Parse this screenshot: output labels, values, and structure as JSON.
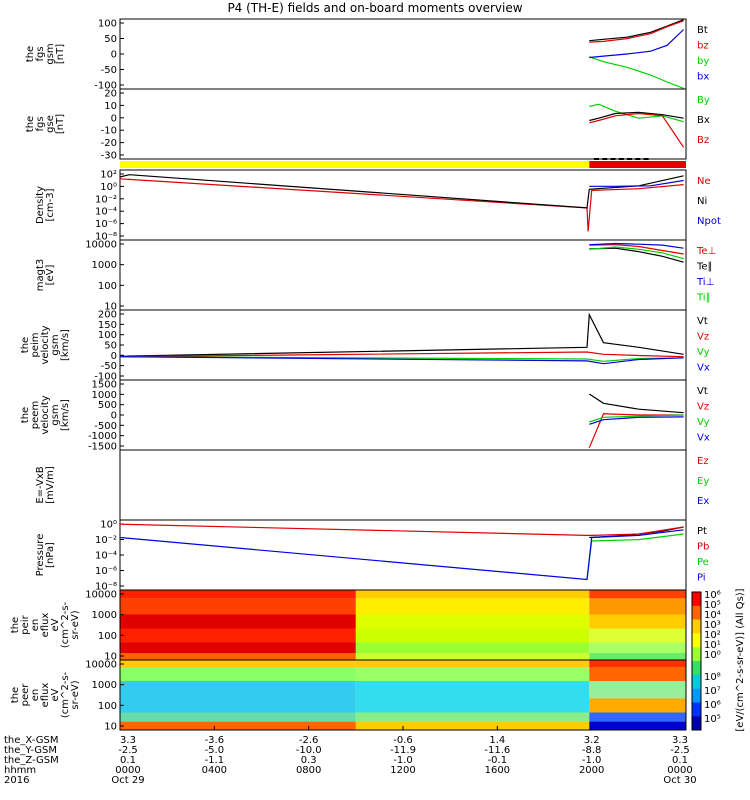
{
  "title": "P4 (TH-E) fields and on-board moments overview",
  "colors": {
    "black": "#000000",
    "red": "#e00000",
    "green": "#00d000",
    "blue": "#0000e0",
    "yellow": "#ffff00",
    "orange": "#ff9900"
  },
  "chart_data": [
    {
      "type": "line",
      "id": "fgs_gsm",
      "ylabel": [
        "the",
        "fgs",
        "gsm",
        "[nT]"
      ],
      "ylim": [
        -100,
        100
      ],
      "yticks": [
        "100",
        "50",
        "0",
        "-50",
        "-100"
      ],
      "series": [
        {
          "name": "Bt",
          "color": "black",
          "x": [
            19.9,
            20.5,
            21.5,
            22.5,
            23.2,
            23.9
          ],
          "y": [
            38,
            42,
            48,
            62,
            80,
            98
          ]
        },
        {
          "name": "bz",
          "color": "red",
          "x": [
            19.9,
            20.5,
            21.5,
            22.5,
            23.2,
            23.9
          ],
          "y": [
            34,
            36,
            44,
            58,
            78,
            95
          ]
        },
        {
          "name": "by",
          "color": "green",
          "x": [
            19.9,
            20.5,
            21.5,
            22.5,
            23.2,
            23.9
          ],
          "y": [
            -8,
            -22,
            -38,
            -60,
            -80,
            -98
          ]
        },
        {
          "name": "bx",
          "color": "blue",
          "x": [
            19.9,
            20.5,
            21.5,
            22.5,
            23.2,
            23.9
          ],
          "y": [
            -10,
            -6,
            0,
            8,
            25,
            70
          ]
        }
      ]
    },
    {
      "type": "line",
      "id": "fgs_gse",
      "ylabel": [
        "the",
        "fgs",
        "gse",
        "[nT]"
      ],
      "ylim": [
        -35,
        25
      ],
      "yticks": [
        "20",
        "10",
        "0",
        "-10",
        "-20",
        "-30"
      ],
      "series": [
        {
          "name": "By",
          "color": "green",
          "x": [
            19.9,
            20.3,
            21,
            22,
            23,
            23.9
          ],
          "y": [
            10,
            12,
            6,
            0,
            2,
            -3
          ]
        },
        {
          "name": "Bx",
          "color": "black",
          "x": [
            19.9,
            20.3,
            21,
            22,
            23,
            23.9
          ],
          "y": [
            -2,
            0,
            4,
            5,
            3,
            0
          ]
        },
        {
          "name": "Bz",
          "color": "red",
          "x": [
            19.9,
            20.3,
            21,
            22,
            23,
            23.9
          ],
          "y": [
            -4,
            -2,
            2,
            4,
            2,
            -25
          ]
        }
      ]
    },
    {
      "type": "line",
      "id": "density",
      "log": true,
      "ylabel": [
        "Density",
        "[cm-3]"
      ],
      "ylim": [
        -9,
        3
      ],
      "yticks": [
        "10²",
        "10⁰",
        "10⁻²",
        "10⁻⁴",
        "10⁻⁶",
        "10⁻⁸"
      ],
      "series": [
        {
          "name": "Ne",
          "color": "red",
          "x": [
            0,
            19.8,
            19.85,
            20,
            22,
            23.9
          ],
          "y": [
            1.5,
            -3.5,
            -7.5,
            -0.5,
            -0.2,
            0.5
          ]
        },
        {
          "name": "Ni",
          "color": "black",
          "x": [
            0,
            0.4,
            19.8,
            19.9,
            22,
            23.9
          ],
          "y": [
            1.8,
            2.2,
            -3.5,
            -0.3,
            0.3,
            2
          ]
        },
        {
          "name": "Npot",
          "color": "blue",
          "x": [
            19.9,
            21,
            22.5,
            23.9
          ],
          "y": [
            0.2,
            0.2,
            0.3,
            1.2
          ]
        }
      ]
    },
    {
      "type": "line",
      "id": "temperature",
      "log": true,
      "ylabel": [
        "magt3",
        "[eV]"
      ],
      "ylim": [
        1,
        4
      ],
      "yticks": [
        "10000",
        "1000",
        "100",
        "10"
      ],
      "series": [
        {
          "name": "Te⊥",
          "color": "red",
          "x": [
            19.9,
            21,
            22,
            23,
            23.9
          ],
          "y": [
            3.78,
            3.8,
            3.72,
            3.55,
            3.4
          ]
        },
        {
          "name": "Te∥",
          "color": "black",
          "x": [
            19.9,
            21,
            22,
            23,
            23.9
          ],
          "y": [
            3.62,
            3.65,
            3.5,
            3.3,
            3.05
          ]
        },
        {
          "name": "Ti⊥",
          "color": "blue",
          "x": [
            19.9,
            21,
            22,
            23,
            23.9
          ],
          "y": [
            3.8,
            3.85,
            3.82,
            3.78,
            3.65
          ]
        },
        {
          "name": "Ti∥",
          "color": "green",
          "x": [
            19.9,
            21,
            22,
            23,
            23.9
          ],
          "y": [
            3.6,
            3.7,
            3.6,
            3.45,
            3.2
          ]
        }
      ]
    },
    {
      "type": "line",
      "id": "peim_velocity",
      "ylabel": [
        "the",
        "peim",
        "velocity",
        "gsm",
        "[km/s]"
      ],
      "ylim": [
        -100,
        200
      ],
      "yticks": [
        "200",
        "150",
        "100",
        "50",
        "0",
        "-50",
        "-100"
      ],
      "series": [
        {
          "name": "Vt",
          "color": "black",
          "x": [
            0,
            19.8,
            19.9,
            20.5,
            22,
            23.9
          ],
          "y": [
            2,
            40,
            180,
            60,
            40,
            10
          ]
        },
        {
          "name": "Vz",
          "color": "red",
          "x": [
            0,
            19.8,
            20.5,
            22,
            23.9
          ],
          "y": [
            0,
            20,
            10,
            5,
            0
          ]
        },
        {
          "name": "Vy",
          "color": "green",
          "x": [
            0,
            19.8,
            20.5,
            22,
            23.9
          ],
          "y": [
            0,
            -10,
            -20,
            -8,
            -5
          ]
        },
        {
          "name": "Vx",
          "color": "blue",
          "x": [
            0,
            19.8,
            20.5,
            22,
            23.9
          ],
          "y": [
            0,
            -18,
            -30,
            -12,
            -5
          ]
        }
      ]
    },
    {
      "type": "line",
      "id": "peem_velocity",
      "ylabel": [
        "the",
        "peem",
        "velocity",
        "gsm",
        "[km/s]"
      ],
      "ylim": [
        -1500,
        1500
      ],
      "yticks": [
        "1500",
        "1000",
        "500",
        "0",
        "-500",
        "-1000",
        "-1500"
      ],
      "series": [
        {
          "name": "Vt",
          "color": "black",
          "x": [
            19.9,
            20.5,
            22,
            23.9
          ],
          "y": [
            900,
            500,
            250,
            100
          ]
        },
        {
          "name": "Vz",
          "color": "red",
          "x": [
            19.9,
            20.5,
            22,
            23.9
          ],
          "y": [
            -1400,
            50,
            0,
            0
          ]
        },
        {
          "name": "Vy",
          "color": "green",
          "x": [
            19.9,
            20.5,
            22,
            23.9
          ],
          "y": [
            -300,
            -100,
            -50,
            0
          ]
        },
        {
          "name": "Vx",
          "color": "blue",
          "x": [
            19.9,
            20.5,
            22,
            23.9
          ],
          "y": [
            -400,
            -200,
            -100,
            -80
          ]
        }
      ]
    },
    {
      "type": "line",
      "id": "efield",
      "ylabel": [
        "E=-VxB",
        "[mV/m]"
      ],
      "ylim": [
        0,
        1
      ],
      "yticks": [],
      "series": [
        {
          "name": "Ez",
          "color": "red",
          "x": [],
          "y": []
        },
        {
          "name": "Ey",
          "color": "green",
          "x": [],
          "y": []
        },
        {
          "name": "Ex",
          "color": "blue",
          "x": [],
          "y": []
        }
      ]
    },
    {
      "type": "line",
      "id": "pressure",
      "log": true,
      "ylabel": [
        "Pressure",
        "[nPa]"
      ],
      "ylim": [
        -9,
        1
      ],
      "yticks": [
        "10⁰",
        "10⁻²",
        "10⁻⁴",
        "10⁻⁶",
        "10⁻⁸"
      ],
      "series": [
        {
          "name": "Pt",
          "color": "black",
          "x": [
            19.9,
            21,
            22,
            23,
            23.9
          ],
          "y": [
            -1.5,
            -1.3,
            -1,
            -0.6,
            0
          ]
        },
        {
          "name": "Pb",
          "color": "red",
          "x": [
            0,
            19.8,
            20,
            22,
            23.9
          ],
          "y": [
            0.4,
            -1.2,
            -1.2,
            -1,
            0
          ]
        },
        {
          "name": "Pe",
          "color": "green",
          "x": [
            19.8,
            20,
            22,
            23.9
          ],
          "y": [
            -7.5,
            -2,
            -1.8,
            -1
          ]
        },
        {
          "name": "Pi",
          "color": "blue",
          "x": [
            0,
            19.8,
            20,
            22,
            23.9
          ],
          "y": [
            -1.5,
            -7.5,
            -1.5,
            -1.2,
            -0.4
          ]
        }
      ]
    },
    {
      "type": "heatmap",
      "id": "peir_eflux",
      "ylabel": [
        "the",
        "peir",
        "en",
        "eflux",
        "eV",
        "(cm^2-s-",
        "sr-eV)"
      ],
      "yticks": [
        "10000",
        "1000",
        "100",
        "10"
      ],
      "colorbar_ticks": [
        "10⁶",
        "10⁵",
        "10⁴",
        "10³",
        "10²",
        "10¹",
        "10⁰"
      ]
    },
    {
      "type": "heatmap",
      "id": "peer_eflux",
      "ylabel": [
        "the",
        "peer",
        "en",
        "eflux",
        "eV",
        "(cm^2-s-",
        "sr-eV)"
      ],
      "yticks": [
        "10000",
        "1000",
        "100",
        "10"
      ],
      "colorbar_ticks": [
        "10⁸",
        "10⁷",
        "10⁶",
        "10⁵"
      ]
    }
  ],
  "legend_colors": {
    "fgs_gsm": [
      "black",
      "red",
      "green",
      "blue"
    ],
    "fgs_gse": [
      "green",
      "black",
      "red"
    ],
    "density": [
      "red",
      "black",
      "blue"
    ],
    "temperature": [
      "red",
      "black",
      "blue",
      "green"
    ],
    "peim_velocity": [
      "black",
      "red",
      "green",
      "blue"
    ],
    "peem_velocity": [
      "black",
      "red",
      "green",
      "blue"
    ],
    "efield": [
      "red",
      "green",
      "blue"
    ],
    "pressure": [
      "black",
      "red",
      "green",
      "blue"
    ]
  },
  "colorbar_label": "[eV/(cm^2-s-sr-eV)] (All Qs)]",
  "xaxis": {
    "row_labels": [
      "the_X-GSM",
      "the_Y-GSM",
      "the_Z-GSM",
      "hhmm",
      "2016"
    ],
    "ticks": [
      {
        "vals": [
          "3.3",
          "-2.5",
          "0.1",
          "0000",
          "Oct 29"
        ]
      },
      {
        "vals": [
          "-3.6",
          "-5.0",
          "-1.1",
          "0400",
          ""
        ]
      },
      {
        "vals": [
          "-2.6",
          "-10.0",
          "0.3",
          "0800",
          ""
        ]
      },
      {
        "vals": [
          "-0.6",
          "-11.9",
          "-1.0",
          "1200",
          ""
        ]
      },
      {
        "vals": [
          "1.4",
          "-11.6",
          "-0.1",
          "1600",
          ""
        ]
      },
      {
        "vals": [
          "3.2",
          "-8.8",
          "-1.0",
          "2000",
          ""
        ]
      },
      {
        "vals": [
          "3.3",
          "-2.5",
          "0.1",
          "0000",
          "Oct 30"
        ]
      }
    ]
  }
}
